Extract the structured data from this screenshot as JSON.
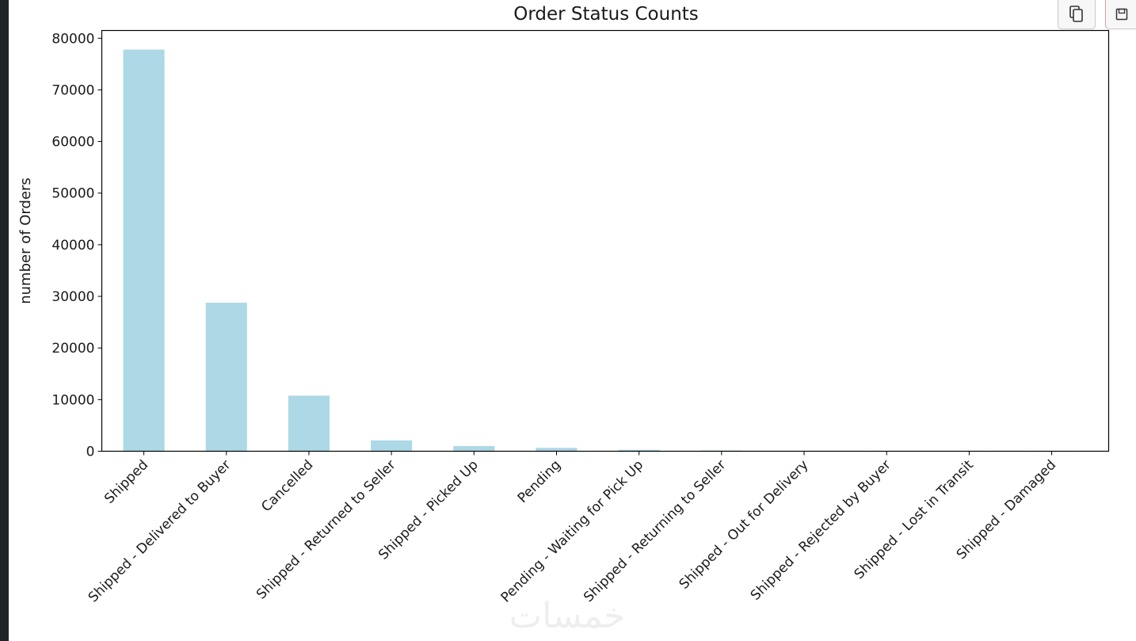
{
  "toolbar": {
    "copy_icon": "copy-icon",
    "save_icon": "save-icon"
  },
  "watermark": "خمسات",
  "chart_data": {
    "type": "bar",
    "title": "Order Status Counts",
    "xlabel": "",
    "ylabel": "number of Orders",
    "categories": [
      "Shipped",
      "Shipped - Delivered to Buyer",
      "Cancelled",
      "Shipped - Returned to Seller",
      "Shipped - Picked Up",
      "Pending",
      "Pending - Waiting for Pick Up",
      "Shipped - Returning to Seller",
      "Shipped - Out for Delivery",
      "Shipped - Rejected by Buyer",
      "Shipped - Lost in Transit",
      "Shipped - Damaged"
    ],
    "values": [
      77800,
      28770,
      10770,
      2100,
      1000,
      660,
      280,
      150,
      35,
      11,
      5,
      1
    ],
    "ylim": [
      0,
      81500
    ],
    "yticks": [
      0,
      10000,
      20000,
      30000,
      40000,
      50000,
      60000,
      70000,
      80000
    ],
    "bar_color": "#add8e6",
    "grid": false,
    "legend": false
  }
}
